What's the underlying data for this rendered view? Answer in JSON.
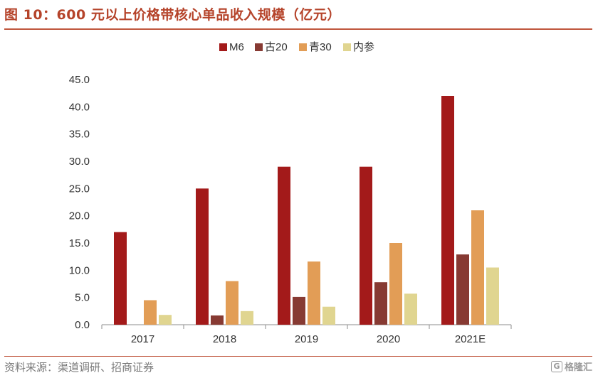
{
  "header": {
    "title": "图 10：600 元以上价格带核心单品收入规模（亿元）"
  },
  "footer": {
    "source": "资料来源：渠道调研、招商证券"
  },
  "watermark": {
    "icon": "g-logo-icon",
    "text": "格隆汇"
  },
  "chart_data": {
    "type": "bar",
    "categories": [
      "2017",
      "2018",
      "2019",
      "2020",
      "2021E"
    ],
    "series": [
      {
        "name": "M6",
        "color": "#a31a1a",
        "values": [
          17.0,
          25.0,
          29.0,
          29.0,
          42.0
        ]
      },
      {
        "name": "古20",
        "color": "#873a33",
        "values": [
          0.0,
          1.7,
          5.1,
          7.8,
          12.9
        ]
      },
      {
        "name": "青30",
        "color": "#e29d56",
        "values": [
          4.5,
          8.0,
          11.6,
          15.0,
          21.0
        ]
      },
      {
        "name": "内参",
        "color": "#e0d590",
        "values": [
          1.8,
          2.5,
          3.3,
          5.7,
          10.5
        ]
      }
    ],
    "ylim": [
      0,
      45
    ],
    "yticks": [
      "0.0",
      "5.0",
      "10.0",
      "15.0",
      "20.0",
      "25.0",
      "30.0",
      "35.0",
      "40.0",
      "45.0"
    ],
    "legend_position": "top-center",
    "grid": false
  }
}
